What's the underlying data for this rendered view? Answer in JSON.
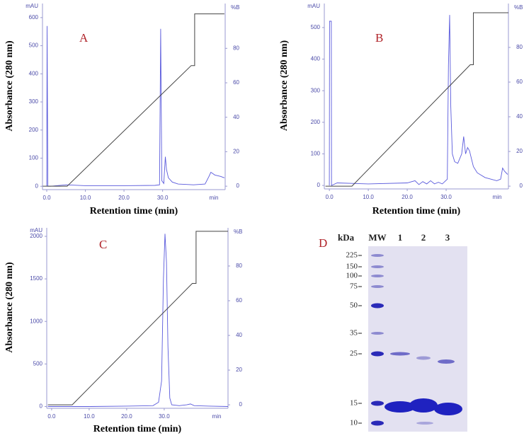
{
  "chart_data": [
    {
      "type": "line",
      "label": "A",
      "y_label": "Absorbance (280 nm)",
      "x_label": "Retention time (min)",
      "y_unit": "mAU",
      "y2_unit": "%B",
      "x_unit": "min",
      "xlim": [
        -1.1,
        46.2
      ],
      "ylim": [
        -12,
        650
      ],
      "y2lim": [
        -2,
        106
      ],
      "xticks": [
        {
          "value": 0,
          "label": "0.0"
        },
        {
          "value": 10,
          "label": "10.0"
        },
        {
          "value": 20,
          "label": "20.0"
        },
        {
          "value": 30,
          "label": "30.0"
        }
      ],
      "yticks": [
        0,
        100,
        200,
        300,
        400,
        500,
        600
      ],
      "y2ticks": [
        0,
        20,
        40,
        60,
        80
      ],
      "series": [
        {
          "color": "#5a5adc",
          "x": [
            0,
            0.1,
            0.3,
            1,
            5,
            10,
            20,
            28,
            29.2,
            29.5,
            29.8,
            30.3,
            30.7,
            31,
            31.5,
            32.5,
            34,
            38,
            41,
            42,
            42.5,
            43.5,
            45,
            46
          ],
          "values": [
            0,
            570,
            0,
            0,
            5,
            2,
            2,
            3,
            5,
            560,
            20,
            10,
            105,
            60,
            30,
            15,
            8,
            5,
            8,
            35,
            50,
            40,
            35,
            30
          ]
        },
        {
          "color": "#444444",
          "axis": "y2",
          "x": [
            -1,
            5.3,
            37.4,
            38.3,
            38.3,
            46
          ],
          "values": [
            0,
            0,
            70,
            70,
            100,
            100
          ]
        }
      ]
    },
    {
      "type": "line",
      "label": "B",
      "y_label": "Absorbance (280 nm)",
      "x_label": "Retention time (min)",
      "y_unit": "mAU",
      "y2_unit": "%B",
      "x_unit": "min",
      "xlim": [
        -1.3,
        46
      ],
      "ylim": [
        -11,
        576
      ],
      "y2lim": [
        -1.6,
        105.3
      ],
      "xticks": [
        {
          "value": 0,
          "label": "0.0"
        },
        {
          "value": 10,
          "label": "10.0"
        },
        {
          "value": 20,
          "label": "20.0"
        },
        {
          "value": 30,
          "label": "30.0"
        }
      ],
      "yticks": [
        0,
        100,
        200,
        300,
        400,
        500
      ],
      "y2ticks": [
        0,
        20,
        40,
        60,
        80
      ],
      "series": [
        {
          "color": "#5a5adc",
          "x": [
            0,
            0.05,
            0.5,
            0.55,
            2,
            10,
            20,
            22,
            23,
            24,
            25,
            26,
            27,
            28,
            29,
            30.3,
            30.6,
            30.9,
            31.2,
            31.6,
            32.2,
            33,
            34,
            34.5,
            35,
            35.5,
            36,
            37,
            38,
            40,
            43,
            44,
            44.5,
            45,
            45.8
          ],
          "values": [
            0,
            520,
            520,
            0,
            8,
            5,
            8,
            15,
            3,
            12,
            5,
            15,
            5,
            10,
            5,
            20,
            380,
            540,
            250,
            100,
            75,
            70,
            100,
            155,
            100,
            120,
            110,
            60,
            40,
            25,
            15,
            20,
            55,
            45,
            35
          ]
        },
        {
          "color": "#444444",
          "axis": "y2",
          "x": [
            -1,
            5.8,
            36.2,
            37,
            37,
            46
          ],
          "values": [
            0,
            0,
            70,
            70,
            100,
            100
          ]
        }
      ]
    },
    {
      "type": "line",
      "label": "C",
      "y_label": "Absorbance (280 nm)",
      "x_label": "Retention time (min)",
      "y_unit": "mAU",
      "y2_unit": "%B",
      "x_unit": "min",
      "xlim": [
        -1.3,
        47
      ],
      "ylim": [
        -21,
        2100
      ],
      "y2lim": [
        -2,
        102
      ],
      "xticks": [
        {
          "value": 0,
          "label": "0.0"
        },
        {
          "value": 10,
          "label": "10.0"
        },
        {
          "value": 20,
          "label": "20.0"
        },
        {
          "value": 30,
          "label": "30.0"
        }
      ],
      "yticks": [
        0,
        500,
        1000,
        1500,
        2000
      ],
      "y2ticks": [
        0,
        20,
        40,
        60,
        80
      ],
      "series": [
        {
          "color": "#5a5adc",
          "x": [
            -1,
            10,
            20,
            27,
            28.5,
            29.3,
            29.8,
            30.2,
            30.6,
            31,
            31.5,
            32,
            34,
            36,
            37,
            38,
            42,
            47
          ],
          "values": [
            0,
            0,
            5,
            10,
            50,
            300,
            1500,
            2030,
            1700,
            700,
            100,
            20,
            10,
            20,
            30,
            10,
            5,
            0
          ]
        },
        {
          "color": "#444444",
          "axis": "y2",
          "x": [
            -1,
            5.5,
            37.5,
            38.5,
            38.5,
            47
          ],
          "values": [
            0,
            0,
            70,
            70,
            100,
            100
          ]
        }
      ]
    }
  ],
  "gel": {
    "label": "D",
    "unit": "kDa",
    "lanes": [
      "MW",
      "1",
      "2",
      "3"
    ],
    "markers": [
      225,
      150,
      100,
      75,
      50,
      35,
      25,
      15,
      10
    ]
  }
}
